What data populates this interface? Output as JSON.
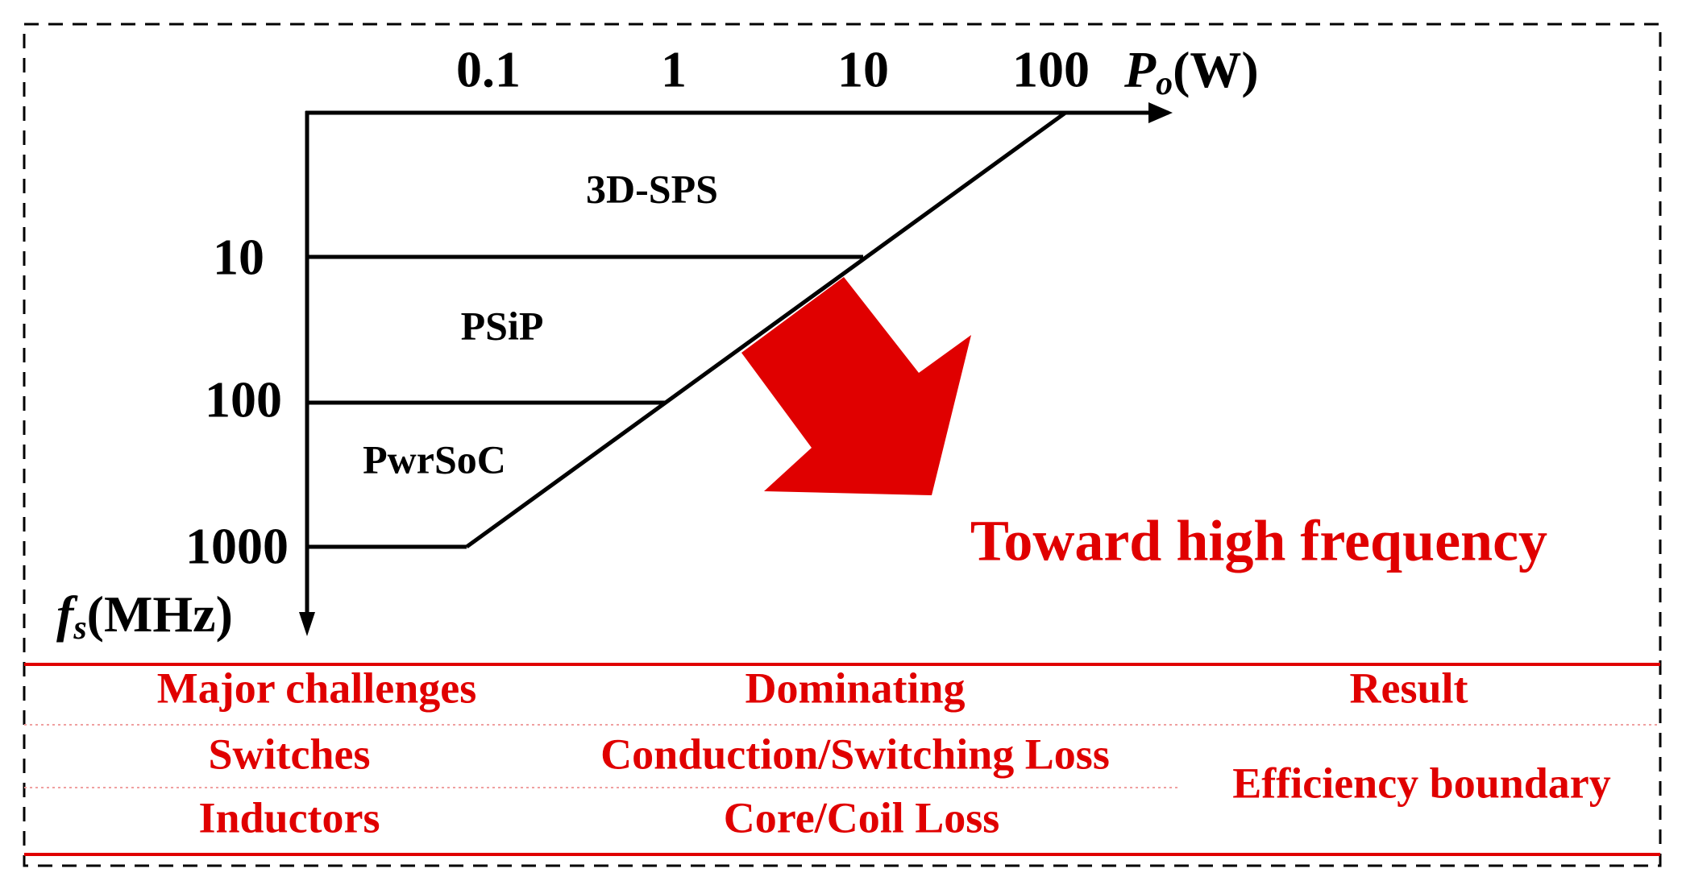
{
  "axes": {
    "x": {
      "ticks": [
        "0.1",
        "1",
        "10",
        "100"
      ],
      "symbol": "P",
      "subscript": "o",
      "unit": "(W)"
    },
    "y": {
      "ticks": [
        "10",
        "100",
        "1000"
      ],
      "symbol": "f",
      "subscript": "s",
      "unit": "(MHz)"
    }
  },
  "regions": [
    "3D-SPS",
    "PSiP",
    "PwrSoC"
  ],
  "arrow_label": "Toward high frequency",
  "table": {
    "header": [
      "Major challenges",
      "Dominating",
      "Result"
    ],
    "rows": [
      [
        "Switches",
        "Conduction/Switching Loss"
      ],
      [
        "Inductors",
        "Core/Coil Loss"
      ]
    ],
    "result": "Efficiency boundary"
  }
}
